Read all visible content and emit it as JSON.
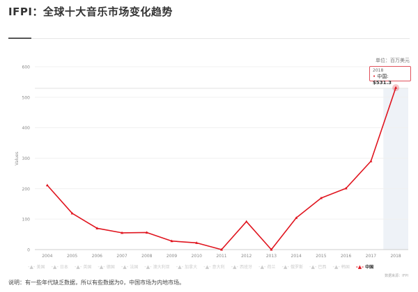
{
  "title": "IFPI：全球十大音乐市场变化趋势",
  "unit_label": "单位：百万美元",
  "tooltip": {
    "year": "2018",
    "series": "中国",
    "value": "531.3"
  },
  "source": "数据来源：IFPI",
  "note": "说明：有一些年代缺乏数据，所以有些数据为0，中国市场为内地市场。",
  "legend": [
    {
      "name": "美国",
      "active": false
    },
    {
      "name": "日本",
      "active": false
    },
    {
      "name": "英国",
      "active": false
    },
    {
      "name": "德国",
      "active": false
    },
    {
      "name": "法国",
      "active": false
    },
    {
      "name": "澳大利亚",
      "active": false
    },
    {
      "name": "加拿大",
      "active": false
    },
    {
      "name": "意大利",
      "active": false
    },
    {
      "name": "西班牙",
      "active": false
    },
    {
      "name": "荷兰",
      "active": false
    },
    {
      "name": "俄罗斯",
      "active": false
    },
    {
      "name": "巴西",
      "active": false
    },
    {
      "name": "韩国",
      "active": false
    },
    {
      "name": "中国",
      "active": true
    }
  ],
  "colors": {
    "china": "#e0141e",
    "highlight": "#eef2f7",
    "inactive": "#cccccc"
  },
  "chart_data": {
    "type": "line",
    "ylabel": "Values",
    "xlabel": "",
    "ylim": [
      0,
      600
    ],
    "yticks": [
      0,
      100,
      200,
      300,
      400,
      500,
      600
    ],
    "grid": true,
    "legend_position": "bottom",
    "categories": [
      "2004",
      "2005",
      "2006",
      "2007",
      "2008",
      "2009",
      "2010",
      "2011",
      "2012",
      "2013",
      "2014",
      "2015",
      "2016",
      "2017",
      "2018"
    ],
    "series": [
      {
        "name": "中国",
        "values": [
          211,
          119,
          70,
          55,
          56,
          28,
          22,
          0,
          92,
          0,
          104,
          169,
          201,
          290,
          531.3
        ]
      }
    ],
    "highlighted_category": "2018"
  }
}
